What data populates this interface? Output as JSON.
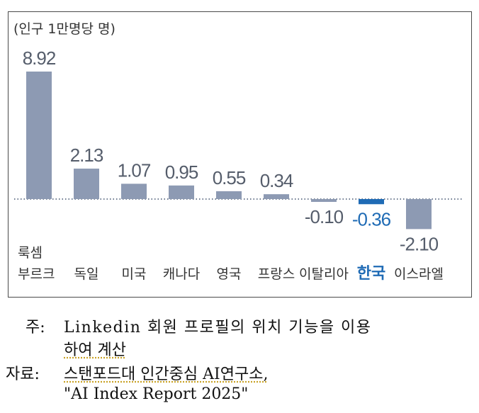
{
  "chart_data": {
    "type": "bar",
    "unit_label": "(인구 1만명당 명)",
    "categories": [
      {
        "lines": [
          "룩셈",
          "부르크"
        ]
      },
      {
        "lines": [
          "독일"
        ]
      },
      {
        "lines": [
          "미국"
        ]
      },
      {
        "lines": [
          "캐나다"
        ]
      },
      {
        "lines": [
          "영국"
        ]
      },
      {
        "lines": [
          "프랑스"
        ]
      },
      {
        "lines": [
          "이탈리아"
        ]
      },
      {
        "lines": [
          "한국"
        ]
      },
      {
        "lines": [
          "이스라엘"
        ]
      }
    ],
    "values": [
      8.92,
      2.13,
      1.07,
      0.95,
      0.55,
      0.34,
      -0.1,
      -0.36,
      -2.1
    ],
    "value_labels": [
      "8.92",
      "2.13",
      "1.07",
      "0.95",
      "0.55",
      "0.34",
      "-0.10",
      "-0.36",
      "-2.10"
    ],
    "highlight_index": 7,
    "colors": {
      "bar": "#8d9ab3",
      "highlight_bar": "#1f6bb5",
      "label": "#555d6b",
      "highlight_label": "#1f6bb5",
      "category": "#333333",
      "baseline": "#3d4f6b"
    },
    "ylim": [
      -2.1,
      8.92
    ],
    "baseline_style": "dotted"
  },
  "notes": {
    "note_prefix": "주:",
    "note_line1": "Linkedin 회원 프로필의 위치 기능을 이용",
    "note_line2": "하여 계산",
    "source_prefix": "자료:",
    "source_line1": "스탠포드대 인간중심 AI연구소,",
    "source_line2": "\"AI Index Report 2025\""
  }
}
